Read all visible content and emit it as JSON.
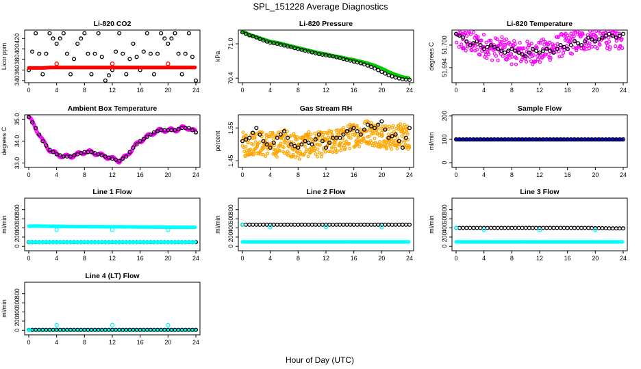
{
  "title": "SPL_151228  Average Diagnostics",
  "xlabel": "Hour of Day (UTC)",
  "chart_data": [
    {
      "type": "scatter",
      "title": "Li-820 CO2",
      "ylabel": "Licor ppm",
      "xlim": [
        0,
        24
      ],
      "xticks": [
        0,
        4,
        8,
        12,
        16,
        20,
        24
      ],
      "ylim": [
        336,
        436
      ],
      "yticks": [
        340,
        360,
        380,
        400,
        420
      ],
      "series": [
        {
          "color": "#000000",
          "kind": "hourly",
          "values": [
            360,
            430,
            352,
            430,
            410,
            430,
            352,
            410,
            430,
            352,
            430,
            340,
            360,
            430,
            352,
            410,
            360,
            430,
            352,
            430,
            410,
            430,
            352,
            430,
            340
          ]
        },
        {
          "color": "#ff0000",
          "kind": "dense",
          "values": [
            364,
            364,
            364,
            365,
            365,
            365,
            365,
            365,
            365,
            365,
            365,
            365,
            365,
            365,
            365,
            365,
            365,
            365,
            365,
            365,
            365,
            365,
            365,
            365,
            365
          ]
        },
        {
          "color": "#ff0000",
          "kind": "sparse",
          "x": [
            4,
            12,
            20
          ],
          "values": [
            372,
            372,
            372
          ]
        }
      ]
    },
    {
      "type": "scatter",
      "title": "Li-820 Pressure",
      "ylabel": "kPa",
      "xlim": [
        0,
        24
      ],
      "xticks": [
        0,
        4,
        8,
        12,
        16,
        20,
        24
      ],
      "ylim": [
        70.32,
        71.24
      ],
      "yticks": [
        70.4,
        71.0
      ],
      "yticklabels": [
        "70.4",
        "71.0"
      ],
      "series": [
        {
          "color": "#00cc00",
          "kind": "dense",
          "values": [
            71.22,
            71.16,
            71.12,
            71.08,
            71.04,
            71.02,
            70.99,
            70.96,
            70.93,
            70.9,
            70.87,
            70.84,
            70.82,
            70.79,
            70.77,
            70.74,
            70.72,
            70.69,
            70.66,
            70.62,
            70.57,
            70.51,
            70.46,
            70.42,
            70.4
          ]
        },
        {
          "color": "#000000",
          "kind": "hourly",
          "values": [
            71.2,
            71.15,
            71.11,
            71.06,
            71.02,
            71.0,
            70.97,
            70.94,
            70.91,
            70.88,
            70.85,
            70.82,
            70.8,
            70.78,
            70.75,
            70.72,
            70.69,
            70.66,
            70.62,
            70.57,
            70.51,
            70.45,
            70.41,
            70.38,
            70.37
          ]
        }
      ]
    },
    {
      "type": "scatter",
      "title": "Li-820 Temperature",
      "ylabel": "degrees C",
      "xlim": [
        0,
        24
      ],
      "xticks": [
        0,
        4,
        8,
        12,
        16,
        20,
        24
      ],
      "ylim": [
        51.69,
        51.704
      ],
      "yticks": [
        51.694,
        51.7
      ],
      "yticklabels": [
        "51.694",
        "51.700"
      ],
      "series": [
        {
          "color": "#ff00ff",
          "kind": "noisy",
          "values": [
            51.702,
            51.701,
            51.701,
            51.7,
            51.7,
            51.699,
            51.699,
            51.699,
            51.698,
            51.698,
            51.698,
            51.698,
            51.698,
            51.699,
            51.699,
            51.7,
            51.7,
            51.701,
            51.701,
            51.702,
            51.702,
            51.702,
            51.702,
            51.702,
            51.702
          ]
        },
        {
          "color": "#000000",
          "kind": "hourly",
          "values": [
            51.703,
            51.702,
            51.7,
            51.701,
            51.699,
            51.7,
            51.699,
            51.698,
            51.699,
            51.698,
            51.697,
            51.699,
            51.698,
            51.699,
            51.698,
            51.7,
            51.699,
            51.701,
            51.7,
            51.702,
            51.701,
            51.702,
            51.703,
            51.702,
            51.703
          ]
        }
      ]
    },
    {
      "type": "scatter",
      "title": "Ambient Box Temperature",
      "ylabel": "degrees C",
      "xlim": [
        0,
        24
      ],
      "xticks": [
        0,
        4,
        8,
        12,
        16,
        20,
        24
      ],
      "ylim": [
        32.8,
        35.2
      ],
      "yticks": [
        33.0,
        34.0,
        35.0
      ],
      "yticklabels": [
        "33.0",
        "34.0",
        "35.0"
      ],
      "series": [
        {
          "color": "#ff00ff",
          "kind": "wavy",
          "values": [
            35.1,
            34.6,
            34.0,
            33.6,
            33.4,
            33.3,
            33.3,
            33.4,
            33.5,
            33.5,
            33.4,
            33.3,
            33.2,
            33.1,
            33.3,
            33.7,
            34.0,
            34.2,
            34.4,
            34.5,
            34.5,
            34.5,
            34.6,
            34.6,
            34.4
          ]
        },
        {
          "color": "#000000",
          "kind": "hourly",
          "values": [
            35.1,
            34.6,
            34.0,
            33.6,
            33.4,
            33.3,
            33.3,
            33.4,
            33.5,
            33.5,
            33.4,
            33.3,
            33.2,
            33.1,
            33.3,
            33.7,
            34.0,
            34.2,
            34.4,
            34.5,
            34.5,
            34.5,
            34.6,
            34.6,
            34.4
          ]
        }
      ]
    },
    {
      "type": "scatter",
      "title": "Gas Stream RH",
      "ylabel": "percent",
      "xlim": [
        0,
        24
      ],
      "xticks": [
        0,
        4,
        8,
        12,
        16,
        20,
        24
      ],
      "ylim": [
        1.43,
        1.59
      ],
      "yticks": [
        1.45,
        1.55
      ],
      "yticklabels": [
        "1.45",
        "1.55"
      ],
      "series": [
        {
          "color": "#ffa500",
          "kind": "band",
          "values": [
            1.5,
            1.5,
            1.51,
            1.5,
            1.5,
            1.5,
            1.51,
            1.5,
            1.49,
            1.5,
            1.5,
            1.5,
            1.5,
            1.51,
            1.51,
            1.52,
            1.53,
            1.53,
            1.54,
            1.53,
            1.53,
            1.52,
            1.52,
            1.53,
            1.52
          ]
        },
        {
          "color": "#000000",
          "kind": "hourly",
          "values": [
            1.51,
            1.52,
            1.55,
            1.51,
            1.49,
            1.52,
            1.54,
            1.5,
            1.49,
            1.51,
            1.5,
            1.53,
            1.49,
            1.52,
            1.52,
            1.54,
            1.55,
            1.53,
            1.56,
            1.55,
            1.57,
            1.52,
            1.53,
            1.49,
            1.55
          ]
        }
      ]
    },
    {
      "type": "scatter",
      "title": "Sample Flow",
      "ylabel": "ml/min",
      "xlim": [
        0,
        24
      ],
      "xticks": [
        0,
        4,
        8,
        12,
        16,
        20,
        24
      ],
      "ylim": [
        -20,
        205
      ],
      "yticks": [
        0,
        100,
        200
      ],
      "series": [
        {
          "color": "#0000ff",
          "kind": "dense",
          "values": [
            99,
            99,
            99,
            99,
            99,
            99,
            99,
            99,
            99,
            99,
            99,
            99,
            99,
            99,
            99,
            99,
            99,
            99,
            99,
            99,
            99,
            99,
            99,
            99,
            99
          ]
        },
        {
          "color": "#000000",
          "kind": "hourly",
          "values": [
            100,
            100,
            100,
            100,
            100,
            100,
            100,
            100,
            100,
            100,
            100,
            100,
            100,
            100,
            100,
            100,
            100,
            100,
            100,
            100,
            100,
            100,
            100,
            100,
            100
          ]
        }
      ]
    },
    {
      "type": "scatter",
      "title": "Line 1 Flow",
      "ylabel": "ml/min",
      "xlim": [
        0,
        24
      ],
      "xticks": [
        0,
        4,
        8,
        12,
        16,
        20,
        24
      ],
      "ylim": [
        -100,
        1050
      ],
      "yticks": [
        0,
        200,
        400,
        600,
        800
      ],
      "series": [
        {
          "color": "#00ffff",
          "kind": "dense",
          "values": [
            440,
            440,
            438,
            436,
            434,
            432,
            430,
            428,
            428,
            427,
            426,
            425,
            425,
            424,
            423,
            422,
            421,
            420,
            419,
            418,
            417,
            416,
            415,
            415,
            415
          ]
        },
        {
          "color": "#00ffff",
          "kind": "sparse",
          "x": [
            4,
            12,
            20
          ],
          "values": [
            360,
            360,
            360
          ]
        },
        {
          "color": "#000000",
          "kind": "hourly",
          "values": [
            90,
            90,
            90,
            90,
            90,
            90,
            90,
            90,
            90,
            90,
            90,
            90,
            90,
            90,
            90,
            90,
            90,
            90,
            90,
            90,
            90,
            90,
            90,
            90,
            90
          ]
        },
        {
          "color": "#00ffff",
          "kind": "dense",
          "values": [
            90,
            90,
            90,
            90,
            90,
            90,
            90,
            90,
            90,
            90,
            90,
            90,
            90,
            90,
            90,
            90,
            90,
            90,
            90,
            90,
            90,
            90,
            90,
            90,
            90
          ]
        }
      ]
    },
    {
      "type": "scatter",
      "title": "Line 2 Flow",
      "ylabel": "ml/min",
      "xlim": [
        0,
        24
      ],
      "xticks": [
        0,
        4,
        8,
        12,
        16,
        20,
        24
      ],
      "ylim": [
        -100,
        1050
      ],
      "yticks": [
        0,
        200,
        400,
        600,
        800
      ],
      "series": [
        {
          "color": "#00ffff",
          "kind": "dense",
          "values": [
            95,
            95,
            95,
            95,
            95,
            95,
            95,
            95,
            95,
            95,
            95,
            95,
            95,
            95,
            95,
            95,
            95,
            95,
            95,
            95,
            95,
            95,
            95,
            95,
            95
          ]
        },
        {
          "color": "#000000",
          "kind": "hourly",
          "values": [
            470,
            470,
            470,
            470,
            470,
            470,
            470,
            470,
            470,
            470,
            470,
            470,
            470,
            470,
            470,
            470,
            470,
            470,
            470,
            470,
            470,
            470,
            470,
            470,
            470
          ]
        },
        {
          "color": "#00ffff",
          "kind": "sparse",
          "x": [
            0,
            4,
            12,
            20
          ],
          "values": [
            470,
            420,
            420,
            420
          ]
        }
      ]
    },
    {
      "type": "scatter",
      "title": "Line 3 Flow",
      "ylabel": "ml/min",
      "xlim": [
        0,
        24
      ],
      "xticks": [
        0,
        4,
        8,
        12,
        16,
        20,
        24
      ],
      "ylim": [
        -100,
        1050
      ],
      "yticks": [
        0,
        200,
        400,
        600,
        800
      ],
      "series": [
        {
          "color": "#00ffff",
          "kind": "dense",
          "values": [
            95,
            95,
            95,
            95,
            95,
            95,
            95,
            95,
            95,
            95,
            95,
            95,
            95,
            95,
            95,
            95,
            95,
            95,
            95,
            95,
            95,
            95,
            95,
            95,
            95
          ]
        },
        {
          "color": "#000000",
          "kind": "hourly",
          "values": [
            400,
            400,
            400,
            400,
            400,
            400,
            400,
            400,
            400,
            400,
            400,
            400,
            400,
            400,
            400,
            400,
            400,
            400,
            400,
            400,
            395,
            395,
            390,
            390,
            390
          ]
        },
        {
          "color": "#00ffff",
          "kind": "sparse",
          "x": [
            0,
            4,
            12,
            20
          ],
          "values": [
            400,
            360,
            360,
            360
          ]
        }
      ]
    },
    {
      "type": "scatter",
      "title": "Line 4 (LT) Flow",
      "ylabel": "ml/min",
      "xlim": [
        0,
        24
      ],
      "xticks": [
        0,
        4,
        8,
        12,
        16,
        20,
        24
      ],
      "ylim": [
        -100,
        1050
      ],
      "yticks": [
        0,
        200,
        400,
        600,
        800
      ],
      "series": [
        {
          "color": "#00ffff",
          "kind": "dense",
          "values": [
            5,
            5,
            5,
            5,
            5,
            5,
            5,
            5,
            5,
            5,
            5,
            5,
            5,
            5,
            5,
            5,
            5,
            5,
            5,
            5,
            5,
            5,
            5,
            5,
            5
          ]
        },
        {
          "color": "#000000",
          "kind": "hourly",
          "values": [
            10,
            10,
            10,
            10,
            10,
            10,
            10,
            10,
            10,
            10,
            10,
            10,
            10,
            10,
            10,
            10,
            10,
            10,
            10,
            10,
            10,
            10,
            10,
            10,
            10
          ]
        },
        {
          "color": "#00ffff",
          "kind": "sparse",
          "x": [
            0,
            4,
            12,
            20
          ],
          "values": [
            10,
            110,
            110,
            110
          ]
        }
      ]
    }
  ]
}
